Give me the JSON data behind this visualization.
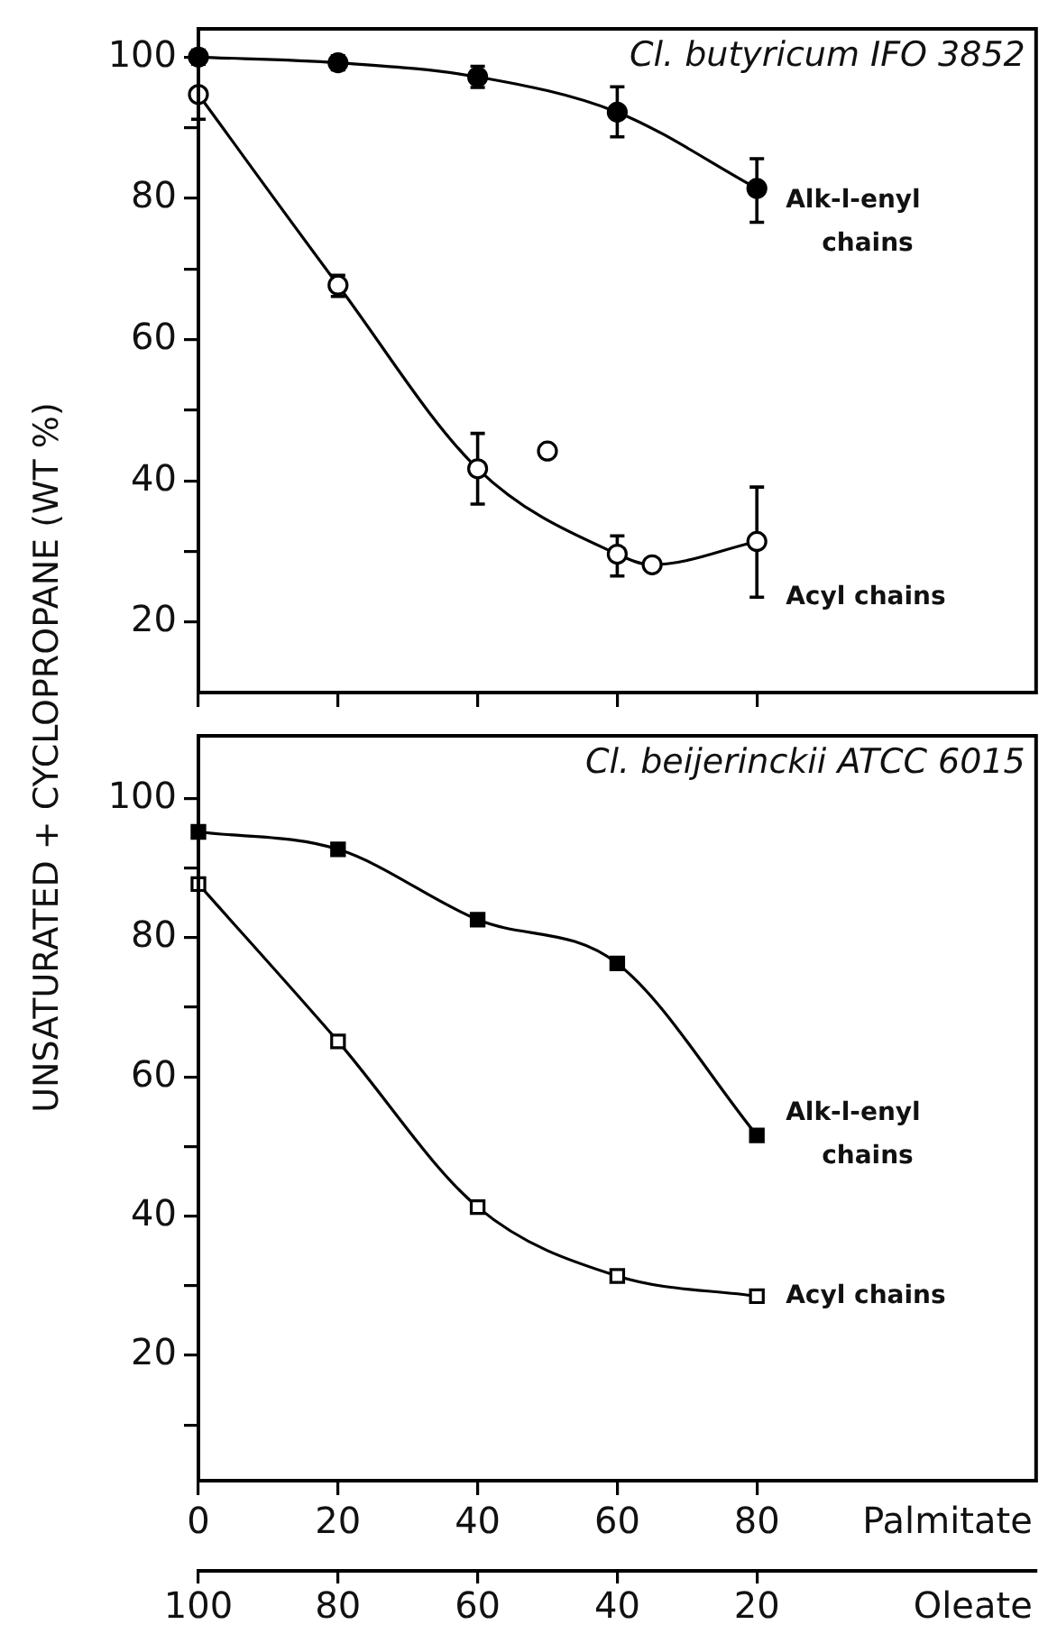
{
  "chart_data": [
    {
      "type": "line",
      "title": "Cl. butyricum IFO 3852",
      "ylabel": "UNSATURATED + CYCLOPROPANE (WT %)",
      "xlim": [
        0,
        120
      ],
      "xticks": [
        0,
        20,
        40,
        60,
        80
      ],
      "ylim": [
        10,
        104
      ],
      "yticks": [
        20,
        {
          "value": 30,
          "label": null
        },
        40,
        {
          "value": 50,
          "label": null
        },
        60,
        {
          "value": 70,
          "label": null
        },
        80,
        {
          "value": 90,
          "label": null
        },
        100
      ],
      "tick_labels": "y",
      "marker": "circle",
      "series": [
        {
          "name": "Alk-l-enyl chains",
          "color": "#000000",
          "x": [
            0,
            20,
            40,
            60,
            80
          ],
          "values": [
            100,
            99.2,
            97.2,
            92.2,
            81.4
          ],
          "errors": [
            1,
            1,
            1.5,
            [
              88.7,
              95.8
            ],
            [
              76.6,
              85.6
            ]
          ]
        },
        {
          "name": "Acyl chains",
          "color": "#ffffff",
          "x": [
            0,
            20,
            40,
            60,
            65,
            80
          ],
          "values": [
            94.7,
            67.7,
            41.7,
            29.6,
            28.1,
            31.4
          ],
          "errors": [
            [
              91.2,
              99.3
            ],
            [
              66.1,
              69.1
            ],
            [
              36.7,
              46.7
            ],
            [
              26.5,
              32.2
            ],
            null,
            [
              23.5,
              39.1
            ]
          ]
        },
        {
          "type": "scatter",
          "color": "#ffffff",
          "x": [
            50
          ],
          "values": [
            44.2
          ]
        }
      ]
    },
    {
      "type": "line",
      "title": "Cl. beijerinckii ATCC 6015",
      "xlabel": "Palmitate",
      "x2label": "Oleate",
      "xlim": [
        0,
        120
      ],
      "xticks": [
        0,
        20,
        40,
        60,
        80
      ],
      "x2lim": [
        100,
        -20
      ],
      "x2ticks": [
        100,
        80,
        60,
        40,
        20
      ],
      "ylim": [
        2,
        109
      ],
      "yticks": [
        {
          "value": 10,
          "label": null
        },
        20,
        {
          "value": 30,
          "label": null
        },
        40,
        {
          "value": 50,
          "label": null
        },
        60,
        {
          "value": 70,
          "label": null
        },
        80,
        {
          "value": 90,
          "label": null
        },
        100
      ],
      "marker": "square",
      "series": [
        {
          "name": "Alk-l-enyl chains",
          "color": "#000000",
          "x": [
            0,
            20,
            40,
            60,
            80
          ],
          "values": [
            95.2,
            92.7,
            82.6,
            76.3,
            51.6
          ]
        },
        {
          "name": "Acyl chains",
          "color": "#ffffff",
          "x": [
            0,
            20,
            40,
            60,
            80
          ],
          "values": [
            87.7,
            65.1,
            41.3,
            31.4,
            28.5
          ]
        }
      ]
    }
  ]
}
